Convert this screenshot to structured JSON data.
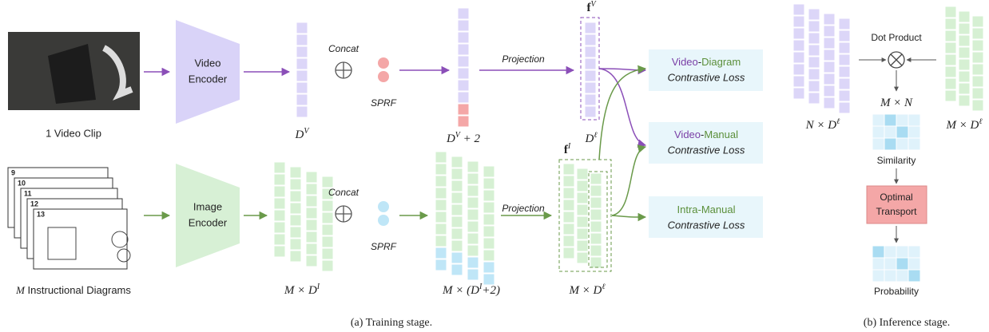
{
  "video_clip": {
    "caption": "1 Video Clip"
  },
  "video_encoder": {
    "label": [
      "Video",
      "Encoder"
    ]
  },
  "image_encoder": {
    "label": [
      "Image",
      "Encoder"
    ]
  },
  "diagrams": {
    "pages": [
      "9",
      "10",
      "11",
      "12",
      "13"
    ],
    "caption": [
      {
        "t": "M"
      },
      {
        "t": " Instructional Diagrams"
      }
    ]
  },
  "video_branch": {
    "concat": "Concat",
    "sprf": "SPRF",
    "projection": "Projection",
    "dim": [
      {
        "t": "D"
      },
      {
        "sup": "V"
      }
    ],
    "dim_plus": [
      {
        "t": "D"
      },
      {
        "sup": "V"
      },
      {
        "t": " + 2"
      }
    ],
    "feature": [
      {
        "b": "f"
      },
      {
        "sup": "V"
      }
    ],
    "feature_dim": [
      {
        "t": "D"
      },
      {
        "sup": "ℓ"
      }
    ]
  },
  "image_branch": {
    "concat": "Concat",
    "sprf": "SPRF",
    "projection": "Projection",
    "dim": [
      {
        "t": "M × D"
      },
      {
        "sup": "I"
      }
    ],
    "dim_plus": [
      {
        "t": "M × (D"
      },
      {
        "sup": "I"
      },
      {
        "t": "+2)"
      }
    ],
    "feature": [
      {
        "b": "f"
      },
      {
        "sup": "I"
      }
    ],
    "feature_dim": [
      {
        "t": "M × D"
      },
      {
        "sup": "ℓ"
      }
    ]
  },
  "losses": [
    {
      "title": [
        {
          "t": "Video",
          "color": "#7a3fa6"
        },
        {
          "t": "-"
        },
        {
          "t": "Diagram",
          "color": "#5b8f3a"
        }
      ],
      "subtitle": "Contrastive Loss"
    },
    {
      "title": [
        {
          "t": "Video",
          "color": "#7a3fa6"
        },
        {
          "t": "-"
        },
        {
          "t": "Manual",
          "color": "#5b8f3a"
        }
      ],
      "subtitle": "Contrastive Loss"
    },
    {
      "title": [
        {
          "t": "Intra-Manual",
          "color": "#5b8f3a"
        }
      ],
      "subtitle": "Contrastive Loss"
    }
  ],
  "inference": {
    "dot_product": "Dot Product",
    "left_dim": [
      {
        "t": "N × D"
      },
      {
        "sup": "ℓ"
      }
    ],
    "right_dim": [
      {
        "t": "M × D"
      },
      {
        "sup": "ℓ"
      }
    ],
    "product_dim": [
      {
        "t": "M × N"
      }
    ],
    "similarity": "Similarity",
    "transport": [
      "Optimal",
      "Transport"
    ],
    "probability": "Probability"
  },
  "captions": {
    "training": "(a) Training stage.",
    "inference": "(b) Inference stage."
  }
}
